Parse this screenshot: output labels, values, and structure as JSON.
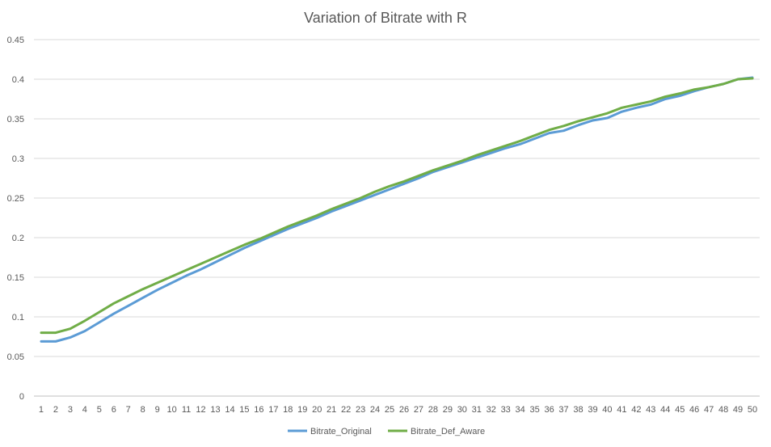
{
  "chart_data": {
    "type": "line",
    "title": "Variation of Bitrate with R",
    "xlabel": "",
    "ylabel": "",
    "x": [
      1,
      2,
      3,
      4,
      5,
      6,
      7,
      8,
      9,
      10,
      11,
      12,
      13,
      14,
      15,
      16,
      17,
      18,
      19,
      20,
      21,
      22,
      23,
      24,
      25,
      26,
      27,
      28,
      29,
      30,
      31,
      32,
      33,
      34,
      35,
      36,
      37,
      38,
      39,
      40,
      41,
      42,
      43,
      44,
      45,
      46,
      47,
      48,
      49,
      50
    ],
    "ylim": [
      0,
      0.45
    ],
    "yticks": [
      0,
      0.05,
      0.1,
      0.15,
      0.2,
      0.25,
      0.3,
      0.35,
      0.4,
      0.45
    ],
    "ytick_labels": [
      "0",
      "0.05",
      "0.1",
      "0.15",
      "0.2",
      "0.25",
      "0.3",
      "0.35",
      "0.4",
      "0.45"
    ],
    "grid": true,
    "legend_position": "bottom",
    "series": [
      {
        "name": "Bitrate_Original",
        "color": "#5b9bd5",
        "values": [
          0.069,
          0.069,
          0.074,
          0.082,
          0.093,
          0.104,
          0.114,
          0.124,
          0.134,
          0.143,
          0.152,
          0.16,
          0.169,
          0.178,
          0.187,
          0.195,
          0.203,
          0.211,
          0.218,
          0.225,
          0.233,
          0.24,
          0.247,
          0.254,
          0.261,
          0.268,
          0.275,
          0.283,
          0.289,
          0.295,
          0.301,
          0.307,
          0.313,
          0.318,
          0.325,
          0.332,
          0.335,
          0.342,
          0.348,
          0.351,
          0.359,
          0.364,
          0.368,
          0.375,
          0.379,
          0.385,
          0.39,
          0.394,
          0.4,
          0.402
        ]
      },
      {
        "name": "Bitrate_Def_Aware",
        "color": "#70ad47",
        "values": [
          0.08,
          0.08,
          0.085,
          0.095,
          0.106,
          0.117,
          0.126,
          0.135,
          0.143,
          0.151,
          0.159,
          0.167,
          0.175,
          0.183,
          0.191,
          0.198,
          0.206,
          0.214,
          0.221,
          0.228,
          0.236,
          0.243,
          0.25,
          0.258,
          0.265,
          0.271,
          0.278,
          0.285,
          0.291,
          0.297,
          0.304,
          0.31,
          0.316,
          0.322,
          0.329,
          0.336,
          0.341,
          0.347,
          0.352,
          0.357,
          0.364,
          0.368,
          0.372,
          0.378,
          0.382,
          0.387,
          0.39,
          0.394,
          0.4,
          0.401
        ]
      }
    ]
  }
}
